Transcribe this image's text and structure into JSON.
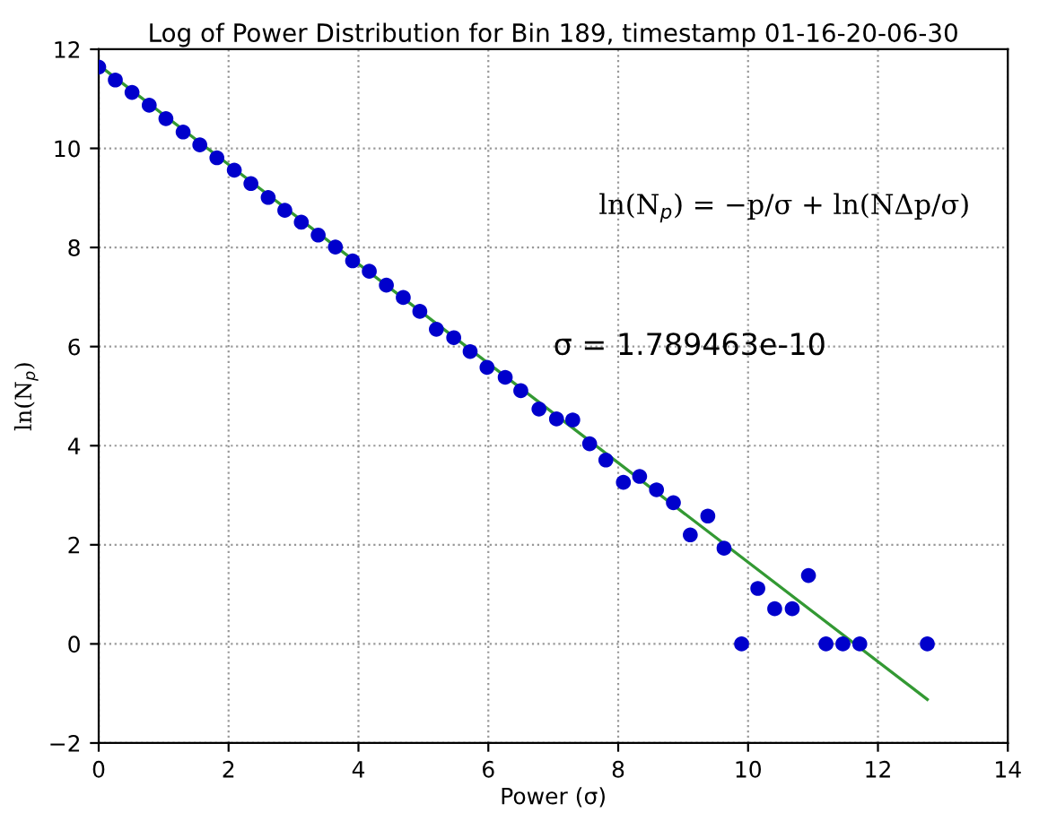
{
  "chart_data": {
    "type": "scatter",
    "title": "Log of Power Distribution for Bin 189, timestamp 01-16-20-06-30",
    "xlabel": "Power (σ)",
    "ylabel": "ln(N$_{p}$)",
    "annotations": [
      "ln(N$_{p}$) = −p/σ + ln(NΔp/σ)",
      "σ = 1.789463e-10"
    ],
    "series": [
      {
        "color": "#0000cc",
        "marker": "circle",
        "x": [
          0.0,
          0.256,
          0.513,
          0.778,
          1.035,
          1.3,
          1.557,
          1.82,
          2.088,
          2.344,
          2.61,
          2.866,
          3.12,
          3.38,
          3.645,
          3.91,
          4.167,
          4.43,
          4.69,
          4.945,
          5.2,
          5.467,
          5.72,
          5.98,
          6.26,
          6.5,
          6.78,
          7.05,
          7.3,
          7.56,
          7.81,
          8.08,
          8.33,
          8.59,
          8.85,
          9.11,
          9.38,
          9.63,
          9.9,
          10.15,
          10.41,
          10.68,
          10.93,
          11.2,
          11.46,
          11.72,
          12.76
        ],
        "values": [
          11.64,
          11.38,
          11.13,
          10.87,
          10.6,
          10.33,
          10.07,
          9.81,
          9.56,
          9.29,
          9.01,
          8.75,
          8.51,
          8.25,
          8.01,
          7.73,
          7.52,
          7.24,
          6.99,
          6.71,
          6.35,
          6.18,
          5.9,
          5.58,
          5.38,
          5.11,
          4.74,
          4.54,
          4.52,
          4.04,
          3.71,
          3.26,
          3.38,
          3.11,
          2.85,
          2.2,
          2.58,
          1.93,
          0,
          1.12,
          0.71,
          0.71,
          1.38,
          0,
          0,
          0,
          0
        ]
      },
      {
        "type": "line",
        "marker": "none",
        "color": "#339933",
        "x": [
          0,
          12.76
        ],
        "values": [
          11.68,
          -1.12
        ]
      }
    ],
    "xlim": [
      0,
      14
    ],
    "xticks": [
      0,
      2,
      4,
      6,
      8,
      10,
      12,
      14
    ],
    "ylim": [
      -2,
      12
    ],
    "yticks": [
      -2,
      0,
      2,
      4,
      6,
      8,
      10,
      12
    ],
    "grid": true,
    "legend": false
  }
}
